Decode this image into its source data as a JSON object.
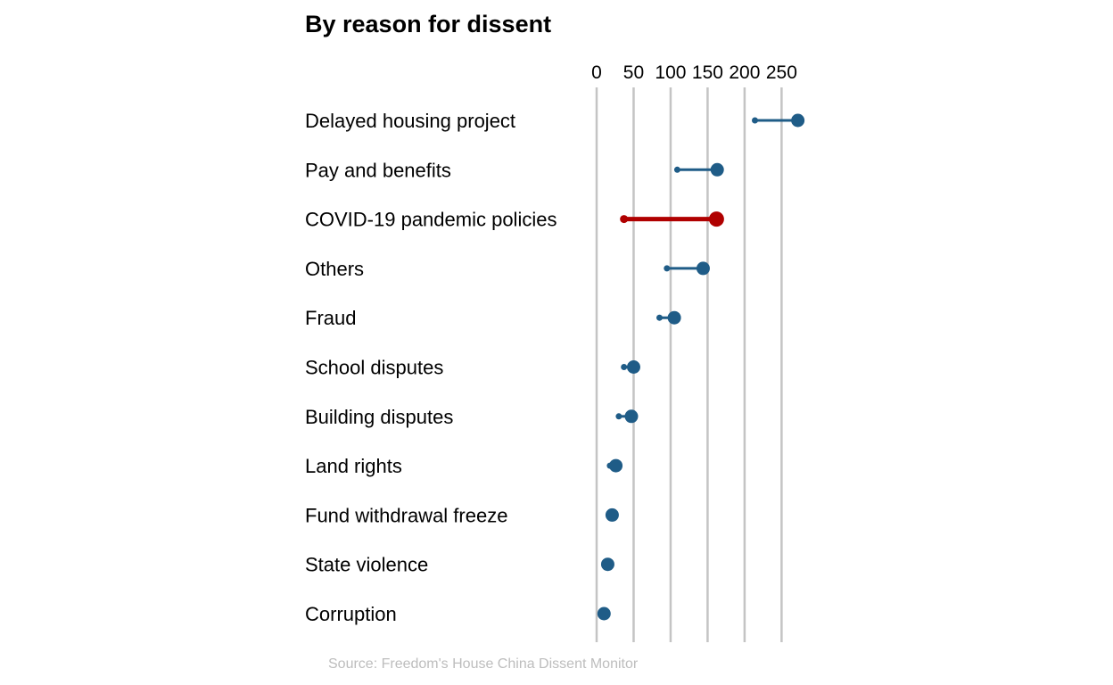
{
  "chart_data": {
    "type": "dumbbell",
    "title": "By reason for dissent",
    "source": "Source: Freedom's House China Dissent Monitor",
    "xlim": [
      0,
      275
    ],
    "xticks": [
      0,
      50,
      100,
      150,
      200,
      250
    ],
    "grid": true,
    "colors": {
      "default": "#1f5c87",
      "highlight": "#b00000",
      "grid": "#c4c4c4"
    },
    "categories": [
      "Delayed housing project",
      "Pay and benefits",
      "COVID-19 pandemic policies",
      "Others",
      "Fraud",
      "School disputes",
      "Building disputes",
      "Land rights",
      "Fund withdrawal freeze",
      "State violence",
      "Corruption"
    ],
    "series": [
      {
        "marker": "small",
        "values": [
          214,
          109,
          37,
          95,
          85,
          37,
          30,
          18,
          20,
          14,
          10
        ]
      },
      {
        "marker": "large",
        "values": [
          272,
          163,
          162,
          144,
          105,
          50,
          47,
          26,
          21,
          15,
          10
        ]
      }
    ],
    "highlighted": [
      "COVID-19 pandemic policies"
    ]
  }
}
